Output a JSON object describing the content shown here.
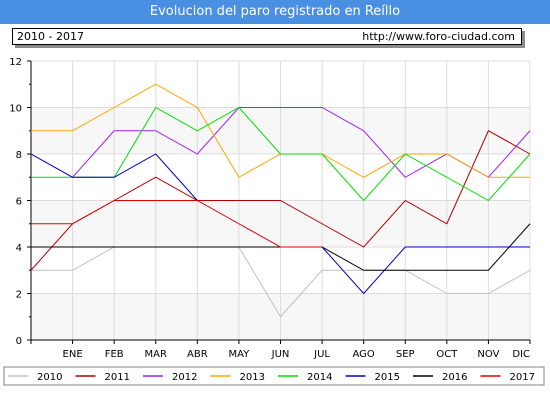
{
  "header": {
    "title": "Evolucion del paro registrado en Reíllo",
    "period": "2010 - 2017",
    "url": "http://www.foro-ciudad.com"
  },
  "chart_data": {
    "type": "line",
    "title": "Evolucion del paro registrado en Reíllo",
    "xlabel": "",
    "ylabel": "",
    "ylim": [
      0,
      12
    ],
    "yticks": [
      0,
      2,
      4,
      6,
      8,
      10,
      12
    ],
    "grid": true,
    "legend_position": "bottom",
    "categories": [
      "",
      "ENE",
      "FEB",
      "MAR",
      "ABR",
      "MAY",
      "JUN",
      "JUL",
      "AGO",
      "SEP",
      "OCT",
      "NOV",
      "DIC"
    ],
    "series": [
      {
        "name": "2010",
        "color": "#c0c0c0",
        "values": [
          3,
          3,
          4,
          4,
          4,
          4,
          1,
          3,
          3,
          3,
          2,
          2,
          3
        ]
      },
      {
        "name": "2011",
        "color": "#b40000",
        "values": [
          3,
          5,
          6,
          7,
          6,
          6,
          6,
          5,
          4,
          6,
          5,
          9,
          8
        ]
      },
      {
        "name": "2012",
        "color": "#a020f0",
        "values": [
          8,
          7,
          9,
          9,
          8,
          10,
          10,
          10,
          9,
          7,
          8,
          7,
          9
        ]
      },
      {
        "name": "2013",
        "color": "#ffa500",
        "values": [
          9,
          9,
          10,
          11,
          10,
          7,
          8,
          8,
          7,
          8,
          8,
          7,
          7
        ]
      },
      {
        "name": "2014",
        "color": "#00dd00",
        "values": [
          7,
          7,
          7,
          10,
          9,
          10,
          8,
          8,
          6,
          8,
          7,
          6,
          8
        ]
      },
      {
        "name": "2015",
        "color": "#0000cc",
        "values": [
          8,
          7,
          7,
          8,
          6,
          null,
          null,
          4,
          2,
          4,
          4,
          4,
          4
        ]
      },
      {
        "name": "2016",
        "color": "#000000",
        "values": [
          4,
          4,
          4,
          4,
          4,
          4,
          4,
          4,
          3,
          3,
          3,
          3,
          5
        ]
      },
      {
        "name": "2017",
        "color": "#dd0000",
        "values": [
          5,
          5,
          6,
          6,
          6,
          5,
          4,
          4,
          null,
          null,
          null,
          null,
          null
        ]
      }
    ]
  }
}
